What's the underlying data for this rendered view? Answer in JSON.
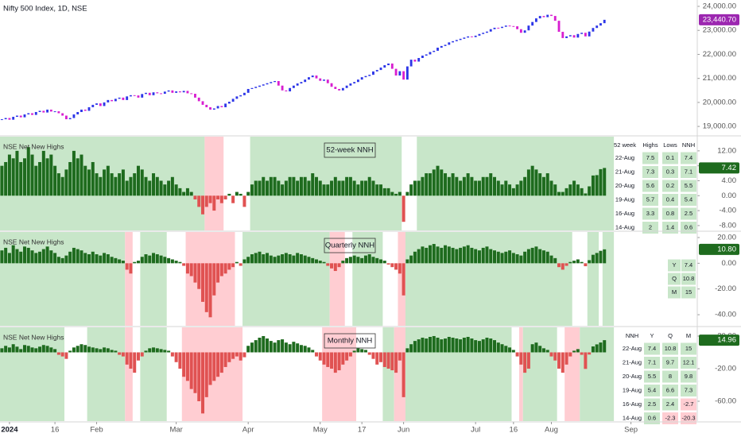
{
  "chart_data": [
    {
      "type": "candlestick",
      "title": "Nifty 500 Index, 1D, NSE",
      "up_color": "#2d36e8",
      "down_color": "#d81fd0",
      "last_label": "23,440.70",
      "last_label_color": "#9c27b0",
      "ylim": [
        18640,
        24265
      ],
      "yticks": [
        {
          "value": 19000,
          "label": "19,000.00"
        },
        {
          "value": 20000,
          "label": "20,000.00"
        },
        {
          "value": 21000,
          "label": "21,000.00"
        },
        {
          "value": 22000,
          "label": "22,000.00"
        },
        {
          "value": 23000,
          "label": "23,000.00"
        },
        {
          "value": 24000,
          "label": "24,000.00"
        }
      ],
      "values": [
        19300,
        19350,
        19280,
        19400,
        19450,
        19380,
        19500,
        19550,
        19480,
        19600,
        19650,
        19580,
        19700,
        19620,
        19630,
        19550,
        19450,
        19300,
        19350,
        19500,
        19600,
        19700,
        19650,
        19800,
        19900,
        19960,
        19850,
        20000,
        20100,
        20050,
        20150,
        20200,
        20100,
        20250,
        20300,
        20290,
        20200,
        20350,
        20400,
        20300,
        20420,
        20380,
        20360,
        20450,
        20500,
        20400,
        20460,
        20420,
        20480,
        20380,
        20360,
        20200,
        20050,
        19900,
        19800,
        19700,
        19750,
        19850,
        19800,
        19950,
        20030,
        20150,
        20250,
        20300,
        20400,
        20560,
        20600,
        20650,
        20700,
        20750,
        20800,
        20850,
        20890,
        20700,
        20500,
        20460,
        20600,
        20700,
        20790,
        20850,
        20950,
        21050,
        21120,
        21000,
        20900,
        20950,
        20800,
        20650,
        20560,
        20500,
        20600,
        20700,
        20790,
        20850,
        20950,
        21050,
        21100,
        21150,
        21290,
        21350,
        21450,
        21550,
        21620,
        21400,
        21120,
        21300,
        20950,
        21500,
        21780,
        21700,
        21850,
        21950,
        22000,
        22100,
        22150,
        22280,
        22350,
        22400,
        22500,
        22550,
        22600,
        22650,
        22700,
        22750,
        22720,
        22780,
        22850,
        22900,
        22950,
        23050,
        23110,
        23100,
        23150,
        23200,
        23180,
        23170,
        23050,
        22900,
        23000,
        23200,
        23350,
        23500,
        23600,
        23550,
        23650,
        23600,
        23400,
        22940,
        22680,
        22750,
        22800,
        22700,
        22850,
        22900,
        22750,
        22950,
        23100,
        23200,
        23300,
        23440.7
      ]
    },
    {
      "type": "bar",
      "title": "NSE Net New Highs",
      "annotation": "52-week NNH",
      "pos_color": "#1e6b1e",
      "neg_color": "#e05252",
      "last_label": "7.42",
      "last_label_color": "#1e6b1e",
      "ylim": [
        -9.3,
        15.8
      ],
      "yticks": [
        {
          "value": 12,
          "label": "12.00"
        },
        {
          "value": 8,
          "label": "8.00"
        },
        {
          "value": 4,
          "label": "4.00"
        },
        {
          "value": 0,
          "label": "0.00"
        },
        {
          "value": -4,
          "label": "-4.00"
        },
        {
          "value": -8,
          "label": "-8.00"
        }
      ],
      "shading": [
        {
          "from": 0,
          "to": 53,
          "color": "#c8e6c9"
        },
        {
          "from": 54,
          "to": 58,
          "color": "#ffcdd2"
        },
        {
          "from": 66,
          "to": 105,
          "color": "#c8e6c9"
        },
        {
          "from": 110,
          "to": 161,
          "color": "#c8e6c9"
        }
      ],
      "values": [
        8,
        9,
        11,
        10,
        12,
        9,
        10,
        13,
        11,
        8,
        9,
        12,
        10,
        11,
        8,
        6,
        5,
        7,
        9,
        12,
        10,
        11,
        8,
        7,
        9,
        6,
        5,
        7,
        8,
        6,
        5,
        6,
        7,
        4,
        5,
        6,
        8,
        7,
        5,
        4,
        6,
        5,
        4,
        3,
        4,
        5,
        3,
        2,
        1,
        2,
        1,
        -1,
        -3,
        -5,
        -3,
        -2,
        -4,
        -1,
        -2,
        -1,
        0.5,
        -2,
        1,
        0.5,
        -3,
        1,
        3,
        4,
        4,
        5,
        4,
        5,
        5,
        4,
        3,
        4,
        5,
        5,
        4,
        5,
        5,
        4,
        6,
        5,
        4,
        3,
        3,
        4,
        5,
        4,
        4,
        5,
        5,
        4,
        3,
        4,
        4,
        5,
        4,
        3,
        3,
        2,
        2,
        1,
        0.5,
        1,
        -7,
        1,
        3,
        4,
        4,
        5,
        6,
        6,
        7,
        8,
        7,
        6,
        5,
        6,
        5,
        4,
        5,
        6,
        5,
        4,
        4,
        5,
        5,
        6,
        5,
        4,
        3,
        4,
        3,
        2,
        3,
        4,
        5,
        7,
        8,
        7,
        6,
        5,
        6,
        4,
        3,
        1,
        1,
        2,
        3,
        4,
        3,
        2,
        0.6,
        2.5,
        5.4,
        5.5,
        7.1,
        7.42
      ],
      "table": {
        "header": [
          "52 week",
          "Highs",
          "Lows",
          "NNH"
        ],
        "rows": [
          [
            "22-Aug",
            "7.5",
            "0.1",
            "7.4"
          ],
          [
            "21-Aug",
            "7.3",
            "0.3",
            "7.1"
          ],
          [
            "20-Aug",
            "5.6",
            "0.2",
            "5.5"
          ],
          [
            "19-Aug",
            "5.7",
            "0.4",
            "5.4"
          ],
          [
            "16-Aug",
            "3.3",
            "0.8",
            "2.5"
          ],
          [
            "14-Aug",
            "2",
            "1.4",
            "0.6"
          ]
        ]
      }
    },
    {
      "type": "bar",
      "title": "NSE Net New Highs",
      "annotation": "Quarterly NNH",
      "pos_color": "#1e6b1e",
      "neg_color": "#e05252",
      "last_label": "10.80",
      "last_label_color": "#1e6b1e",
      "ylim": [
        -48.6,
        24.3
      ],
      "yticks": [
        {
          "value": 20,
          "label": "20.00"
        },
        {
          "value": 0,
          "label": "0.00"
        },
        {
          "value": -20,
          "label": "-20.00"
        },
        {
          "value": -40,
          "label": "-40.00"
        }
      ],
      "shading": [
        {
          "from": 0,
          "to": 32,
          "color": "#c8e6c9"
        },
        {
          "from": 33,
          "to": 34,
          "color": "#ffcdd2"
        },
        {
          "from": 37,
          "to": 43,
          "color": "#c8e6c9"
        },
        {
          "from": 49,
          "to": 61,
          "color": "#ffcdd2"
        },
        {
          "from": 64,
          "to": 86,
          "color": "#c8e6c9"
        },
        {
          "from": 87,
          "to": 90,
          "color": "#ffcdd2"
        },
        {
          "from": 93,
          "to": 100,
          "color": "#c8e6c9"
        },
        {
          "from": 105,
          "to": 106,
          "color": "#ffcdd2"
        },
        {
          "from": 107,
          "to": 150,
          "color": "#c8e6c9"
        },
        {
          "from": 155,
          "to": 157,
          "color": "#c8e6c9"
        },
        {
          "from": 159,
          "to": 161,
          "color": "#c8e6c9"
        }
      ],
      "values": [
        10,
        12,
        8,
        14,
        11,
        9,
        13,
        12,
        10,
        8,
        9,
        11,
        13,
        10,
        8,
        5,
        4,
        6,
        9,
        12,
        11,
        10,
        8,
        7,
        9,
        7,
        6,
        8,
        7,
        5,
        4,
        3,
        2,
        -5,
        -8,
        1,
        2,
        5,
        7,
        6,
        8,
        7,
        6,
        5,
        4,
        3,
        2,
        1,
        -2,
        -8,
        -10,
        -15,
        -20,
        -30,
        -38,
        -42,
        -25,
        -15,
        -10,
        -8,
        -5,
        -3,
        1,
        -2,
        3,
        5,
        7,
        8,
        9,
        7,
        8,
        6,
        5,
        6,
        7,
        8,
        7,
        6,
        8,
        7,
        6,
        5,
        4,
        3,
        2,
        1,
        -2,
        -4,
        -6,
        -3,
        2,
        4,
        5,
        6,
        5,
        4,
        6,
        7,
        5,
        4,
        3,
        2,
        -1,
        -3,
        -5,
        -8,
        -25,
        3,
        6,
        9,
        11,
        13,
        12,
        14,
        15,
        13,
        12,
        14,
        13,
        12,
        11,
        12,
        13,
        14,
        12,
        11,
        10,
        12,
        13,
        11,
        10,
        9,
        8,
        9,
        10,
        8,
        7,
        6,
        9,
        11,
        12,
        13,
        11,
        10,
        9,
        6,
        4,
        -3,
        -5,
        -2,
        1,
        2,
        3,
        1,
        -2.3,
        2.4,
        6.6,
        8,
        9.7,
        10.8
      ],
      "table": {
        "rows": [
          [
            "Y",
            "7.4"
          ],
          [
            "Q",
            "10.8"
          ],
          [
            "M",
            "15"
          ]
        ]
      }
    },
    {
      "type": "bar",
      "title": "NSE Net New Highs",
      "annotation": "Monthly NNH",
      "pos_color": "#1e6b1e",
      "neg_color": "#e05252",
      "last_label": "14.96",
      "last_label_color": "#1e6b1e",
      "ylim": [
        -84.4,
        30.7
      ],
      "yticks": [
        {
          "value": 20,
          "label": "20.00"
        },
        {
          "value": -20,
          "label": "-20.00"
        },
        {
          "value": -60,
          "label": "-60.00"
        }
      ],
      "xlim": [
        -0.5,
        183.5
      ],
      "xticks": [
        {
          "value": 2,
          "label": "2024"
        },
        {
          "value": 14,
          "label": "16"
        },
        {
          "value": 25,
          "label": "Feb"
        },
        {
          "value": 46,
          "label": "Mar"
        },
        {
          "value": 65,
          "label": "Apr"
        },
        {
          "value": 84,
          "label": "May"
        },
        {
          "value": 95,
          "label": "17"
        },
        {
          "value": 106,
          "label": "Jun"
        },
        {
          "value": 125,
          "label": "Jul"
        },
        {
          "value": 135,
          "label": "16"
        },
        {
          "value": 145,
          "label": "Aug"
        },
        {
          "value": 166,
          "label": "Sep"
        }
      ],
      "shading": [
        {
          "from": 0,
          "to": 16,
          "color": "#c8e6c9"
        },
        {
          "from": 23,
          "to": 32,
          "color": "#c8e6c9"
        },
        {
          "from": 33,
          "to": 34,
          "color": "#ffcdd2"
        },
        {
          "from": 37,
          "to": 43,
          "color": "#c8e6c9"
        },
        {
          "from": 48,
          "to": 63,
          "color": "#ffcdd2"
        },
        {
          "from": 85,
          "to": 93,
          "color": "#ffcdd2"
        },
        {
          "from": 101,
          "to": 103,
          "color": "#c8e6c9"
        },
        {
          "from": 104,
          "to": 106,
          "color": "#ffcdd2"
        },
        {
          "from": 107,
          "to": 134,
          "color": "#c8e6c9"
        },
        {
          "from": 137,
          "to": 137,
          "color": "#ffcdd2"
        },
        {
          "from": 138,
          "to": 146,
          "color": "#c8e6c9"
        },
        {
          "from": 149,
          "to": 152,
          "color": "#ffcdd2"
        },
        {
          "from": 153,
          "to": 161,
          "color": "#c8e6c9"
        }
      ],
      "values": [
        5,
        8,
        6,
        10,
        7,
        4,
        9,
        8,
        6,
        5,
        7,
        9,
        8,
        6,
        4,
        -3,
        -5,
        -8,
        2,
        6,
        8,
        10,
        9,
        7,
        6,
        5,
        4,
        6,
        5,
        3,
        2,
        -3,
        -5,
        -15,
        -20,
        -25,
        -10,
        -5,
        2,
        5,
        6,
        5,
        4,
        3,
        2,
        -5,
        -12,
        -20,
        -30,
        -35,
        -45,
        -50,
        -60,
        -75,
        -55,
        -40,
        -35,
        -30,
        -25,
        -18,
        -12,
        -8,
        -5,
        -10,
        -6,
        8,
        12,
        15,
        18,
        20,
        17,
        14,
        12,
        15,
        16,
        12,
        10,
        13,
        11,
        9,
        8,
        6,
        3,
        -5,
        -10,
        -15,
        -18,
        -20,
        -25,
        -22,
        -15,
        -10,
        -5,
        2,
        5,
        4,
        3,
        -3,
        -8,
        -15,
        -12,
        -18,
        -20,
        -22,
        -25,
        -10,
        -55,
        5,
        10,
        14,
        16,
        18,
        17,
        19,
        20,
        18,
        16,
        17,
        19,
        18,
        17,
        16,
        18,
        19,
        17,
        15,
        14,
        16,
        18,
        17,
        15,
        12,
        10,
        8,
        6,
        3,
        -5,
        -15,
        -25,
        -20,
        10,
        12,
        8,
        5,
        3,
        -5,
        -10,
        -20,
        -25,
        -15,
        -5,
        2,
        4,
        -3,
        -20.3,
        -2.7,
        7.3,
        9.8,
        12.1,
        14.96
      ],
      "table": {
        "header": [
          "NNH",
          "Y",
          "Q",
          "M"
        ],
        "rows": [
          [
            "22-Aug",
            "7.4",
            "10.8",
            "15"
          ],
          [
            "21-Aug",
            "7.1",
            "9.7",
            "12.1"
          ],
          [
            "20-Aug",
            "5.5",
            "8",
            "9.8"
          ],
          [
            "19-Aug",
            "5.4",
            "6.6",
            "7.3"
          ],
          [
            "16-Aug",
            "2.5",
            "2.4",
            "-2.7"
          ],
          [
            "14-Aug",
            "0.6",
            "-2.3",
            "-20.3"
          ]
        ]
      }
    }
  ]
}
